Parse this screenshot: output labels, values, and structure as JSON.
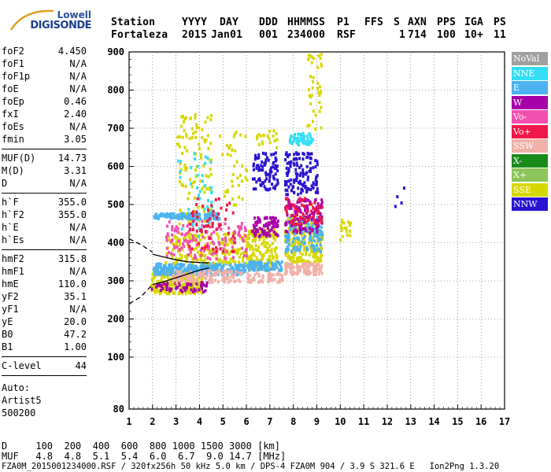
{
  "logo": {
    "line1": "Lowell",
    "line2": "DIGISONDE"
  },
  "header": {
    "labels": [
      "Station",
      "YYYY",
      "DAY",
      "DDD",
      "HHMMSS",
      "P1",
      "FFS",
      "S",
      "AXN",
      "PPS",
      "IGA",
      "PS"
    ],
    "values": [
      "Fortaleza",
      "2015",
      "Jan01",
      "001",
      "234000",
      "RSF",
      "",
      "1",
      "714",
      "100",
      "10+",
      "11"
    ]
  },
  "params": [
    {
      "label": "foF2",
      "value": "4.450"
    },
    {
      "label": "foF1",
      "value": "N/A"
    },
    {
      "label": "foF1p",
      "value": "N/A"
    },
    {
      "label": "foE",
      "value": "N/A"
    },
    {
      "label": "foEp",
      "value": "0.46"
    },
    {
      "label": "fxI",
      "value": "2.40"
    },
    {
      "label": "foEs",
      "value": "N/A"
    },
    {
      "label": "fmin",
      "value": "3.05"
    },
    {
      "label": "MUF(D)",
      "value": "14.73"
    },
    {
      "label": "M(D)",
      "value": "3.31"
    },
    {
      "label": "D",
      "value": "N/A"
    },
    {
      "label": "h`F",
      "value": "355.0"
    },
    {
      "label": "h`F2",
      "value": "355.0"
    },
    {
      "label": "h`E",
      "value": "N/A"
    },
    {
      "label": "h`Es",
      "value": "N/A"
    },
    {
      "label": "hmF2",
      "value": "315.8"
    },
    {
      "label": "hmF1",
      "value": "N/A"
    },
    {
      "label": "hmE",
      "value": "110.0"
    },
    {
      "label": "yF2",
      "value": "35.1"
    },
    {
      "label": "yF1",
      "value": "N/A"
    },
    {
      "label": "yE",
      "value": "20.0"
    },
    {
      "label": "B0",
      "value": "47.2"
    },
    {
      "label": "B1",
      "value": "1.00"
    },
    {
      "label": "C-level",
      "value": "44"
    }
  ],
  "auto": {
    "line1": "Auto:",
    "line2": "Artist5",
    "line3": "500200"
  },
  "legend": [
    {
      "label": "NoVal",
      "color": "#a0a0a0"
    },
    {
      "label": "NNE",
      "color": "#33ddf5"
    },
    {
      "label": "E",
      "color": "#4cb2f0"
    },
    {
      "label": "W",
      "color": "#a800a8"
    },
    {
      "label": "Vo-",
      "color": "#f24fb0"
    },
    {
      "label": "Vo+",
      "color": "#f01848"
    },
    {
      "label": "SSW",
      "color": "#f0b0a8"
    },
    {
      "label": "X-",
      "color": "#1a8a1a"
    },
    {
      "label": "X+",
      "color": "#8cc45a"
    },
    {
      "label": "SSE",
      "color": "#d7d700"
    },
    {
      "label": "NNW",
      "color": "#2a14d2"
    }
  ],
  "footer": {
    "line1": "D     100  200  400  600  800 1000 1500 3000 [km]",
    "line2": "MUF   4.8  4.8  5.1  5.4  6.0  6.7  9.0 14.7 [MHz]",
    "line3": "FZA0M_2015001234000.RSF / 320fx256h 50 kHz 5.0 km / DPS-4 FZA0M 904 / 3.9 S 321.6 E   Ion2Png 1.3.20"
  },
  "chart_data": {
    "type": "scatter",
    "xlim": [
      1,
      17
    ],
    "ylim": [
      80,
      900
    ],
    "x_ticks": [
      "1",
      "2",
      "3",
      "4",
      "5",
      "6",
      "7",
      "8",
      "9",
      "10",
      "11",
      "12",
      "13",
      "14",
      "15",
      "16",
      "17"
    ],
    "y_ticks": [
      "80",
      "100",
      "200",
      "300",
      "400",
      "500",
      "600",
      "700",
      "800",
      "900"
    ],
    "grid": true,
    "echo_clusters": [
      {
        "x": [
          1.9,
          4.1
        ],
        "y": [
          270,
          330
        ],
        "color": "#d7d700",
        "n": 260
      },
      {
        "x": [
          1.9,
          4.3
        ],
        "y": [
          275,
          300
        ],
        "color": "#a800a8",
        "n": 60
      },
      {
        "x": [
          2.0,
          6.0
        ],
        "y": [
          320,
          350
        ],
        "color": "#4cb2f0",
        "n": 320
      },
      {
        "x": [
          2.5,
          6.0
        ],
        "y": [
          350,
          430
        ],
        "color": "#d7d700",
        "n": 200
      },
      {
        "x": [
          2.5,
          6.0
        ],
        "y": [
          360,
          460
        ],
        "color": "#f24fb0",
        "n": 140
      },
      {
        "x": [
          2.8,
          5.8
        ],
        "y": [
          300,
          330
        ],
        "color": "#f0b0a8",
        "n": 120
      },
      {
        "x": [
          3.0,
          4.5
        ],
        "y": [
          450,
          740
        ],
        "color": "#d7d700",
        "n": 110
      },
      {
        "x": [
          3.0,
          4.5
        ],
        "y": [
          420,
          650
        ],
        "color": "#33ddf5",
        "n": 50
      },
      {
        "x": [
          2.0,
          4.8
        ],
        "y": [
          465,
          480
        ],
        "color": "#4cb2f0",
        "n": 150
      },
      {
        "x": [
          3.5,
          5.5
        ],
        "y": [
          380,
          520
        ],
        "color": "#f01848",
        "n": 60
      },
      {
        "x": [
          4.8,
          6.0
        ],
        "y": [
          500,
          700
        ],
        "color": "#d7d700",
        "n": 40
      },
      {
        "x": [
          6.0,
          7.3
        ],
        "y": [
          330,
          440
        ],
        "color": "#d7d700",
        "n": 160
      },
      {
        "x": [
          6.2,
          7.3
        ],
        "y": [
          420,
          470
        ],
        "color": "#a800a8",
        "n": 80
      },
      {
        "x": [
          6.2,
          7.3
        ],
        "y": [
          540,
          640
        ],
        "color": "#2a14d2",
        "n": 90
      },
      {
        "x": [
          6.0,
          7.5
        ],
        "y": [
          330,
          355
        ],
        "color": "#4cb2f0",
        "n": 90
      },
      {
        "x": [
          6.0,
          7.5
        ],
        "y": [
          300,
          325
        ],
        "color": "#f0b0a8",
        "n": 60
      },
      {
        "x": [
          6.4,
          7.3
        ],
        "y": [
          650,
          700
        ],
        "color": "#d7d700",
        "n": 20
      },
      {
        "x": [
          7.6,
          9.2
        ],
        "y": [
          350,
          470
        ],
        "color": "#d7d700",
        "n": 220
      },
      {
        "x": [
          7.6,
          9.2
        ],
        "y": [
          380,
          470
        ],
        "color": "#4cb2f0",
        "n": 140
      },
      {
        "x": [
          7.6,
          9.2
        ],
        "y": [
          430,
          520
        ],
        "color": "#a800a8",
        "n": 120
      },
      {
        "x": [
          7.6,
          9.2
        ],
        "y": [
          450,
          520
        ],
        "color": "#f01848",
        "n": 60
      },
      {
        "x": [
          7.6,
          9.2
        ],
        "y": [
          320,
          350
        ],
        "color": "#f0b0a8",
        "n": 110
      },
      {
        "x": [
          7.6,
          9.0
        ],
        "y": [
          530,
          640
        ],
        "color": "#2a14d2",
        "n": 130
      },
      {
        "x": [
          7.8,
          8.8
        ],
        "y": [
          660,
          690
        ],
        "color": "#33ddf5",
        "n": 60
      },
      {
        "x": [
          8.5,
          9.2
        ],
        "y": [
          690,
          900
        ],
        "color": "#d7d700",
        "n": 40
      },
      {
        "x": [
          9.9,
          10.4
        ],
        "y": [
          410,
          470
        ],
        "color": "#d7d700",
        "n": 20
      },
      {
        "x": [
          12.2,
          12.7
        ],
        "y": [
          460,
          560
        ],
        "color": "#2a14d2",
        "n": 4
      }
    ],
    "profile_curves": [
      {
        "style": "solid",
        "x": [
          2.0,
          2.5,
          3.0,
          3.5,
          4.0,
          4.4
        ],
        "y": [
          290,
          298,
          308,
          318,
          328,
          334
        ]
      },
      {
        "style": "solid",
        "x": [
          2.0,
          2.5,
          3.0,
          3.5,
          4.0,
          4.4
        ],
        "y": [
          370,
          362,
          355,
          350,
          348,
          347
        ]
      },
      {
        "style": "dashed",
        "x": [
          1.0,
          1.5,
          2.0
        ],
        "y": [
          240,
          258,
          290
        ]
      },
      {
        "style": "dashed",
        "x": [
          1.0,
          1.5,
          2.0
        ],
        "y": [
          410,
          395,
          375
        ]
      }
    ]
  }
}
